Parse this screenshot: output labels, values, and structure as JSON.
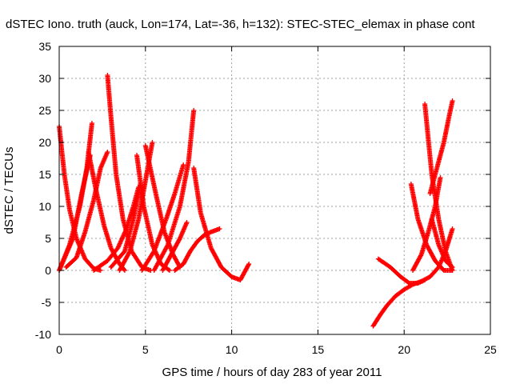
{
  "chart_data": {
    "type": "scatter",
    "title": "dSTEC Iono. truth (auck, Lon=174, Lat=-36, h=132): STEC-STEC_elemax in phase cont",
    "xlabel": "GPS time / hours of day 283 of year 2011",
    "ylabel": "dSTEC  / TECUs",
    "xlim": [
      0,
      25
    ],
    "ylim": [
      -10,
      35
    ],
    "xticks": [
      0,
      5,
      10,
      15,
      20,
      25
    ],
    "yticks": [
      -10,
      -5,
      0,
      5,
      10,
      15,
      20,
      25,
      30,
      35
    ],
    "grid": true,
    "marker": "+",
    "color": "#ff0000",
    "series": [
      {
        "x": [
          0.0,
          0.3,
          0.6,
          1.0,
          1.5,
          2.0,
          2.4
        ],
        "y": [
          22.5,
          15.0,
          9.5,
          5.0,
          1.8,
          0.3,
          0.0
        ]
      },
      {
        "x": [
          0.0,
          0.6,
          1.2,
          1.6,
          1.9
        ],
        "y": [
          0.0,
          4.0,
          10.0,
          16.0,
          23.0
        ]
      },
      {
        "x": [
          0.4,
          1.0,
          1.5,
          2.0,
          2.4,
          2.8
        ],
        "y": [
          0.5,
          2.0,
          6.0,
          11.0,
          16.0,
          18.5
        ]
      },
      {
        "x": [
          0.0,
          0.8,
          1.3,
          1.8
        ],
        "y": [
          0.0,
          5.0,
          12.0,
          18.0
        ]
      },
      {
        "x": [
          1.7,
          2.1,
          2.6,
          3.0,
          3.5,
          3.8
        ],
        "y": [
          18.5,
          13.0,
          7.0,
          3.5,
          1.0,
          0.0
        ]
      },
      {
        "x": [
          2.0,
          2.8,
          3.4,
          3.9,
          4.3,
          4.6
        ],
        "y": [
          0.0,
          1.5,
          3.5,
          6.5,
          10.0,
          13.0
        ]
      },
      {
        "x": [
          2.8,
          3.0,
          3.3,
          3.7,
          4.2,
          4.8,
          5.3
        ],
        "y": [
          30.5,
          24.0,
          15.0,
          8.0,
          3.0,
          0.5,
          0.0
        ]
      },
      {
        "x": [
          3.0,
          3.8,
          4.3,
          4.7
        ],
        "y": [
          0.5,
          3.0,
          8.0,
          13.5
        ]
      },
      {
        "x": [
          4.5,
          4.9,
          5.4,
          5.9,
          6.4
        ],
        "y": [
          18.0,
          10.0,
          4.0,
          1.0,
          0.0
        ]
      },
      {
        "x": [
          3.5,
          4.1,
          4.6,
          5.0,
          5.4
        ],
        "y": [
          0.0,
          3.0,
          8.0,
          14.0,
          20.0
        ]
      },
      {
        "x": [
          4.8,
          5.5,
          6.2,
          6.7,
          7.2
        ],
        "y": [
          0.0,
          3.0,
          8.0,
          12.0,
          16.5
        ]
      },
      {
        "x": [
          5.0,
          5.6,
          6.1,
          6.6,
          7.0
        ],
        "y": [
          19.5,
          12.0,
          6.0,
          2.5,
          0.5
        ]
      },
      {
        "x": [
          5.5,
          6.3,
          7.0,
          7.5,
          7.8
        ],
        "y": [
          0.0,
          4.0,
          10.0,
          17.0,
          25.0
        ]
      },
      {
        "x": [
          6.0,
          6.5,
          7.0,
          7.4
        ],
        "y": [
          0.0,
          2.5,
          5.0,
          7.5
        ]
      },
      {
        "x": [
          6.7,
          7.2,
          7.6,
          8.0,
          8.4,
          8.8,
          9.3
        ],
        "y": [
          0.0,
          1.0,
          3.0,
          4.5,
          5.5,
          6.0,
          6.5
        ]
      },
      {
        "x": [
          7.8,
          8.2,
          8.8,
          9.4,
          10.0,
          10.5,
          11.0
        ],
        "y": [
          16.0,
          9.0,
          3.5,
          0.5,
          -1.0,
          -1.5,
          1.0
        ]
      },
      {
        "x": [
          18.2,
          18.6,
          19.0,
          19.5,
          20.0,
          20.5,
          21.0,
          21.5,
          22.0,
          22.4,
          22.8
        ],
        "y": [
          -8.7,
          -7.0,
          -5.5,
          -4.0,
          -3.0,
          -2.2,
          -1.7,
          -1.0,
          0.5,
          3.0,
          6.5
        ]
      },
      {
        "x": [
          18.5,
          19.2,
          19.8,
          20.3,
          20.8,
          21.2
        ],
        "y": [
          1.8,
          0.5,
          -1.0,
          -2.0,
          -2.0,
          -1.5
        ]
      },
      {
        "x": [
          20.4,
          20.8,
          21.3,
          21.8,
          22.3,
          22.8
        ],
        "y": [
          13.5,
          8.0,
          4.0,
          1.5,
          0.0,
          0.0
        ]
      },
      {
        "x": [
          20.5,
          21.0,
          21.4,
          21.8,
          22.1
        ],
        "y": [
          0.0,
          2.5,
          6.0,
          10.0,
          14.5
        ]
      },
      {
        "x": [
          21.2,
          21.6,
          22.0,
          22.4,
          22.8
        ],
        "y": [
          26.0,
          15.0,
          8.0,
          3.0,
          0.0
        ]
      },
      {
        "x": [
          21.5,
          21.9,
          22.3,
          22.6,
          22.8
        ],
        "y": [
          12.0,
          16.0,
          20.0,
          24.0,
          26.5
        ]
      },
      {
        "x": [
          21.6,
          22.0,
          22.4,
          22.8
        ],
        "y": [
          8.0,
          4.0,
          1.5,
          0.5
        ]
      }
    ]
  }
}
